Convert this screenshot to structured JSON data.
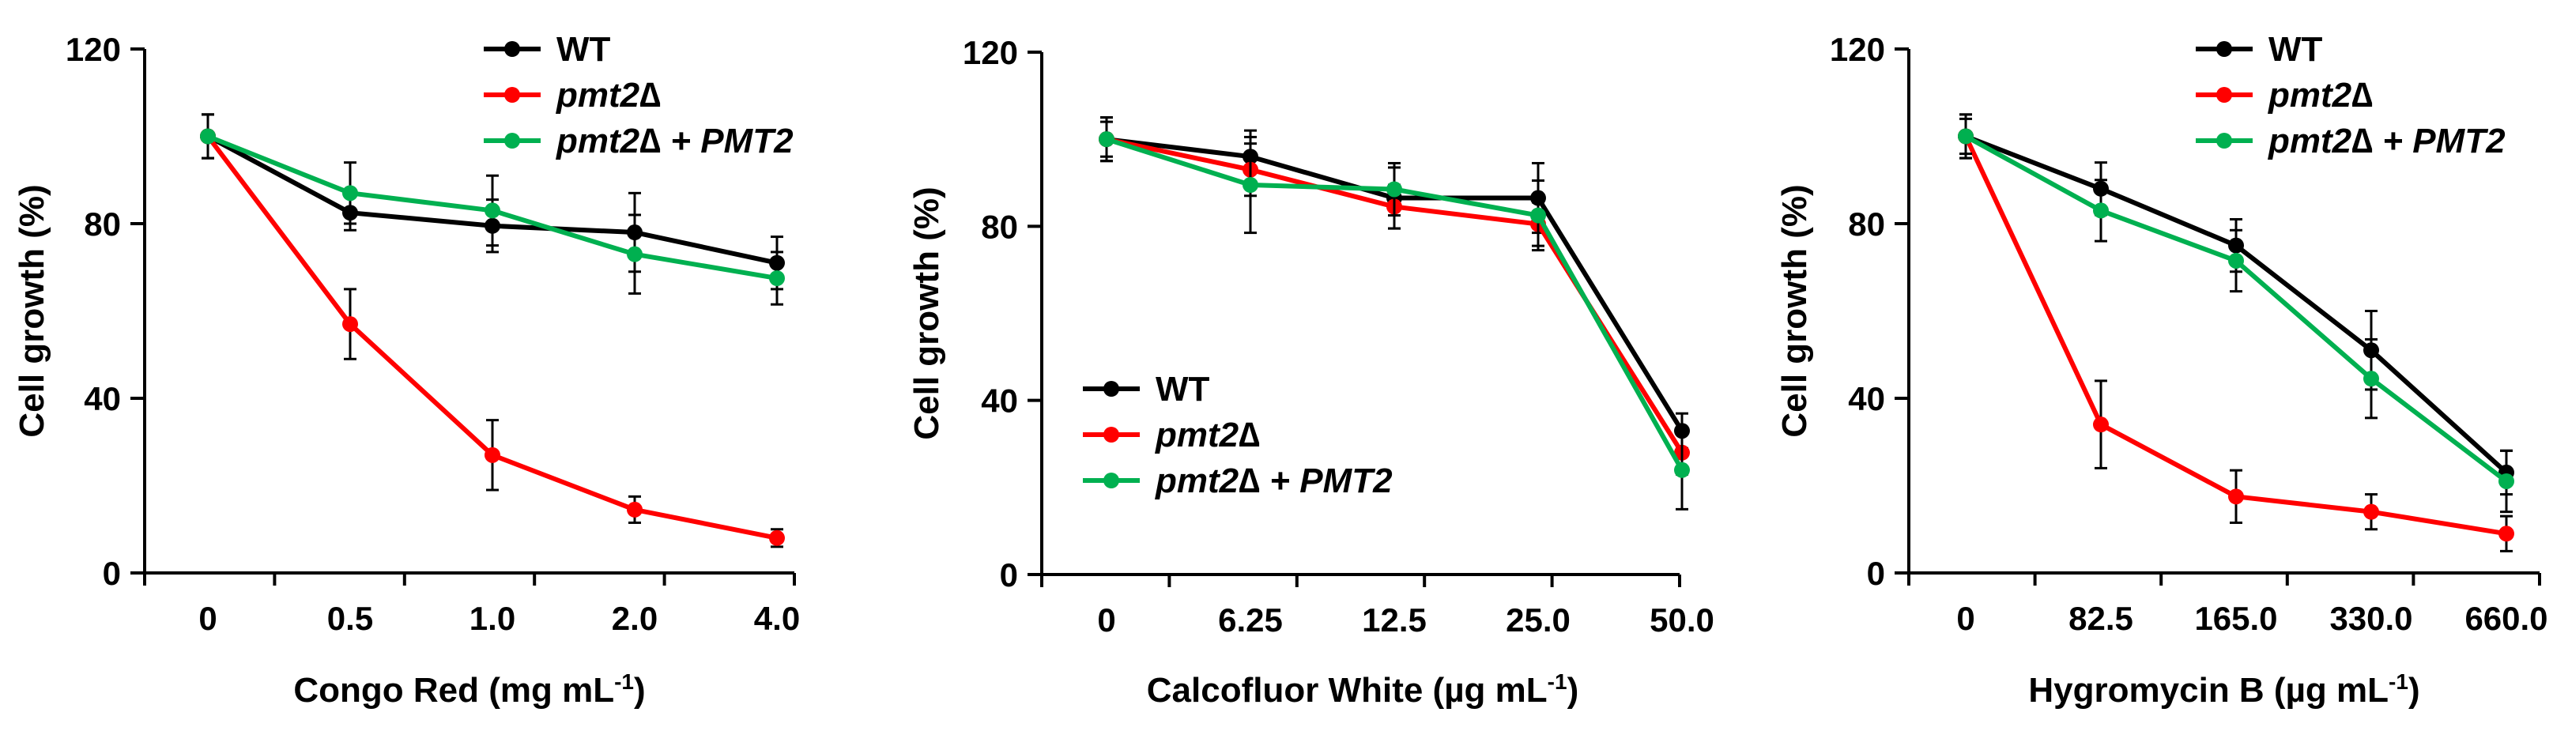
{
  "chart_data": [
    {
      "type": "line",
      "categories": [
        "0",
        "0.5",
        "1.0",
        "2.0",
        "4.0"
      ],
      "xlabel": "Congo Red (mg mL",
      "xlabel_sup": "-1",
      "xlabel_suffix": ")",
      "ylabel": "Cell growth (%)",
      "ylim": [
        0,
        120
      ],
      "yticks": [
        "0",
        "40",
        "80",
        "120"
      ],
      "legend_position": "top-right",
      "series": [
        {
          "name": "WT",
          "name_suffix": "",
          "color": "#000000",
          "values": [
            100,
            82.5,
            79.5,
            78,
            71
          ],
          "errors": [
            5,
            4,
            6,
            9,
            6
          ]
        },
        {
          "name": "pmt2∆",
          "name_suffix": "",
          "color": "#ff0000",
          "values": [
            100,
            57,
            27,
            14.5,
            8
          ],
          "errors": [
            5,
            8,
            8,
            3,
            2
          ]
        },
        {
          "name": "pmt2∆ + ",
          "name_suffix": "PMT2",
          "color": "#00b050",
          "values": [
            100,
            87,
            83,
            73,
            67.5
          ],
          "errors": [
            5,
            7,
            8,
            9,
            6
          ]
        }
      ]
    },
    {
      "type": "line",
      "categories": [
        "0",
        "6.25",
        "12.5",
        "25.0",
        "50.0"
      ],
      "xlabel": "Calcofluor White (µg mL",
      "xlabel_sup": "-1",
      "xlabel_suffix": ")",
      "ylabel": "Cell growth (%)",
      "ylim": [
        0,
        120
      ],
      "yticks": [
        "0",
        "40",
        "80",
        "120"
      ],
      "legend_position": "bottom-left",
      "series": [
        {
          "name": "WT",
          "name_suffix": "",
          "color": "#000000",
          "values": [
            100,
            96,
            86.5,
            86.5,
            33
          ],
          "errors": [
            5,
            6,
            7,
            8,
            4
          ]
        },
        {
          "name": "pmt2∆",
          "name_suffix": "",
          "color": "#ff0000",
          "values": [
            100,
            93,
            84.5,
            80.5,
            28
          ],
          "errors": [
            5,
            6,
            5,
            5,
            5
          ]
        },
        {
          "name": "pmt2∆ + ",
          "name_suffix": "PMT2",
          "color": "#00b050",
          "values": [
            100,
            89.5,
            88.5,
            82.5,
            24
          ],
          "errors": [
            4,
            11,
            6,
            8,
            9
          ]
        }
      ]
    },
    {
      "type": "line",
      "categories": [
        "0",
        "82.5",
        "165.0",
        "330.0",
        "660.0"
      ],
      "xlabel": "Hygromycin B (µg mL",
      "xlabel_sup": "-1",
      "xlabel_suffix": ")",
      "ylabel": "Cell growth (%)",
      "ylim": [
        0,
        120
      ],
      "yticks": [
        "0",
        "40",
        "80",
        "120"
      ],
      "legend_position": "top-right",
      "series": [
        {
          "name": "WT",
          "name_suffix": "",
          "color": "#000000",
          "values": [
            100,
            88,
            75,
            51,
            23
          ],
          "errors": [
            5,
            6,
            6,
            9,
            5
          ]
        },
        {
          "name": "pmt2∆",
          "name_suffix": "",
          "color": "#ff0000",
          "values": [
            100,
            34,
            17.5,
            14,
            9
          ],
          "errors": [
            5,
            10,
            6,
            4,
            4
          ]
        },
        {
          "name": "pmt2∆ + ",
          "name_suffix": "PMT2",
          "color": "#00b050",
          "values": [
            100,
            83,
            71.5,
            44.5,
            21
          ],
          "errors": [
            4,
            7,
            7,
            9,
            7
          ]
        }
      ]
    }
  ]
}
